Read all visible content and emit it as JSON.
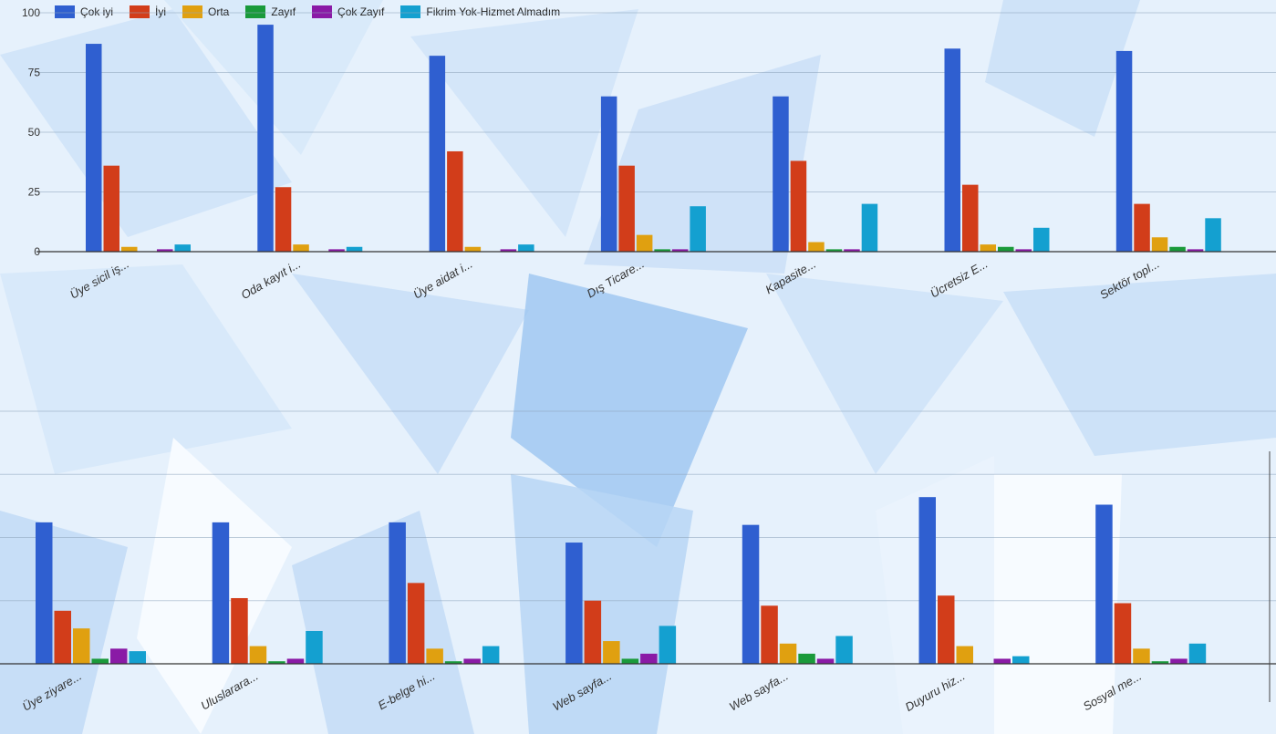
{
  "colors": {
    "series": [
      "#2f5fd0",
      "#d23d1a",
      "#e0a010",
      "#1a9a3a",
      "#8a1aa6",
      "#14a0d0"
    ]
  },
  "chart_data": [
    {
      "type": "bar",
      "ylim": [
        0,
        100
      ],
      "yticks": [
        "0",
        "25",
        "50",
        "75",
        "100"
      ],
      "grid": true,
      "legend_position": "top-left",
      "categories": [
        "Üye sicil iş...",
        "Oda kayıt i...",
        "Üye aidat i...",
        "Dış Ticare...",
        "Kapasite...",
        "Ücretsiz E...",
        "Sektör topl..."
      ],
      "series": [
        {
          "name": "Çok iyi",
          "values": [
            87,
            95,
            82,
            65,
            65,
            85,
            84
          ]
        },
        {
          "name": "İyi",
          "values": [
            36,
            27,
            42,
            36,
            38,
            28,
            20
          ]
        },
        {
          "name": "Orta",
          "values": [
            2,
            3,
            2,
            7,
            4,
            3,
            6
          ]
        },
        {
          "name": "Zayıf",
          "values": [
            0,
            0,
            0,
            1,
            1,
            2,
            2
          ]
        },
        {
          "name": "Çok Zayıf",
          "values": [
            1,
            1,
            1,
            1,
            1,
            1,
            1
          ]
        },
        {
          "name": "Fikrim Yok-Hizmet Almadım",
          "values": [
            3,
            2,
            3,
            19,
            20,
            10,
            14
          ]
        }
      ]
    },
    {
      "type": "bar",
      "ylim": [
        0,
        100
      ],
      "grid": true,
      "categories": [
        "Üye ziyare...",
        "Uluslarara...",
        "E-belge hi...",
        "Web sayfa...",
        "Web sayfa...",
        "Duyuru hiz...",
        "Sosyal me..."
      ],
      "series": [
        {
          "name": "Çok iyi",
          "values": [
            56,
            56,
            56,
            48,
            55,
            66,
            63
          ]
        },
        {
          "name": "İyi",
          "values": [
            21,
            26,
            32,
            25,
            23,
            27,
            24
          ]
        },
        {
          "name": "Orta",
          "values": [
            14,
            7,
            6,
            9,
            8,
            7,
            6
          ]
        },
        {
          "name": "Zayıf",
          "values": [
            2,
            1,
            1,
            2,
            4,
            0,
            1
          ]
        },
        {
          "name": "Çok Zayıf",
          "values": [
            6,
            2,
            2,
            4,
            2,
            2,
            2
          ]
        },
        {
          "name": "Fikrim Yok-Hizmet Almadım",
          "values": [
            5,
            13,
            7,
            15,
            11,
            3,
            8
          ]
        }
      ]
    }
  ]
}
